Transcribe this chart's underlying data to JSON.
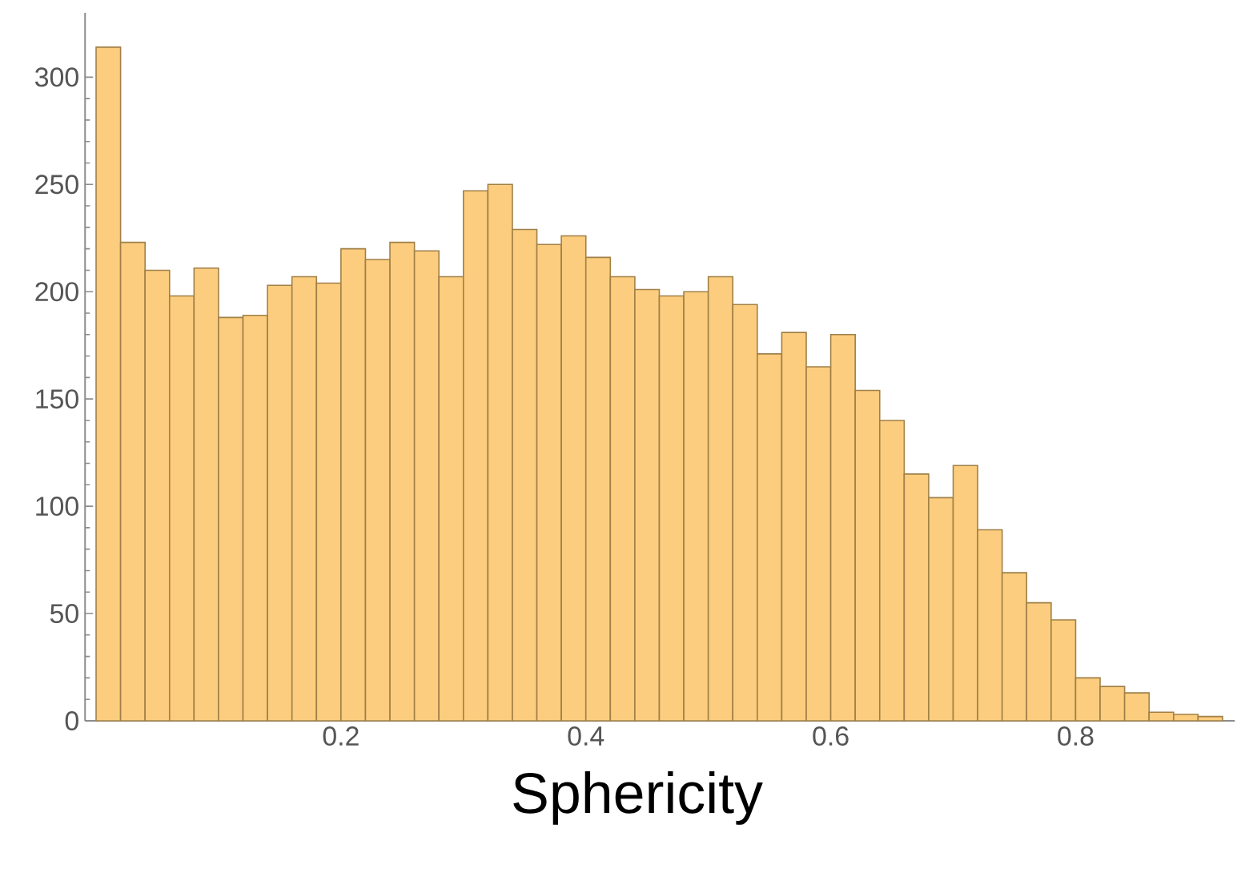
{
  "chart_data": {
    "type": "histogram",
    "xlabel": "Sphericity",
    "color": "#fccd7e",
    "bins": [
      0,
      0.02,
      0.04,
      0.06,
      0.08,
      0.1,
      0.12,
      0.14,
      0.16,
      0.18,
      0.2,
      0.22,
      0.24,
      0.26,
      0.28,
      0.3,
      0.32,
      0.34,
      0.36,
      0.38,
      0.4,
      0.42,
      0.44,
      0.46,
      0.48,
      0.5,
      0.52,
      0.54,
      0.56,
      0.58,
      0.6,
      0.62,
      0.64,
      0.66,
      0.68,
      0.7,
      0.72,
      0.74,
      0.76,
      0.78,
      0.8,
      0.82,
      0.84,
      0.86,
      0.88,
      0.9,
      0.92
    ],
    "values": [
      314,
      223,
      210,
      198,
      211,
      188,
      189,
      203,
      207,
      204,
      220,
      215,
      223,
      219,
      207,
      247,
      250,
      229,
      222,
      226,
      216,
      207,
      201,
      198,
      200,
      207,
      194,
      171,
      181,
      165,
      180,
      154,
      140,
      115,
      104,
      119,
      89,
      69,
      55,
      47,
      20,
      16,
      13,
      4,
      3,
      2
    ],
    "xlim": [
      -0.009,
      0.93
    ],
    "ylim": [
      0,
      330
    ],
    "xticks": [
      0.2,
      0.4,
      0.6,
      0.8
    ],
    "yticks": [
      0,
      50,
      100,
      150,
      200,
      250,
      300
    ]
  }
}
